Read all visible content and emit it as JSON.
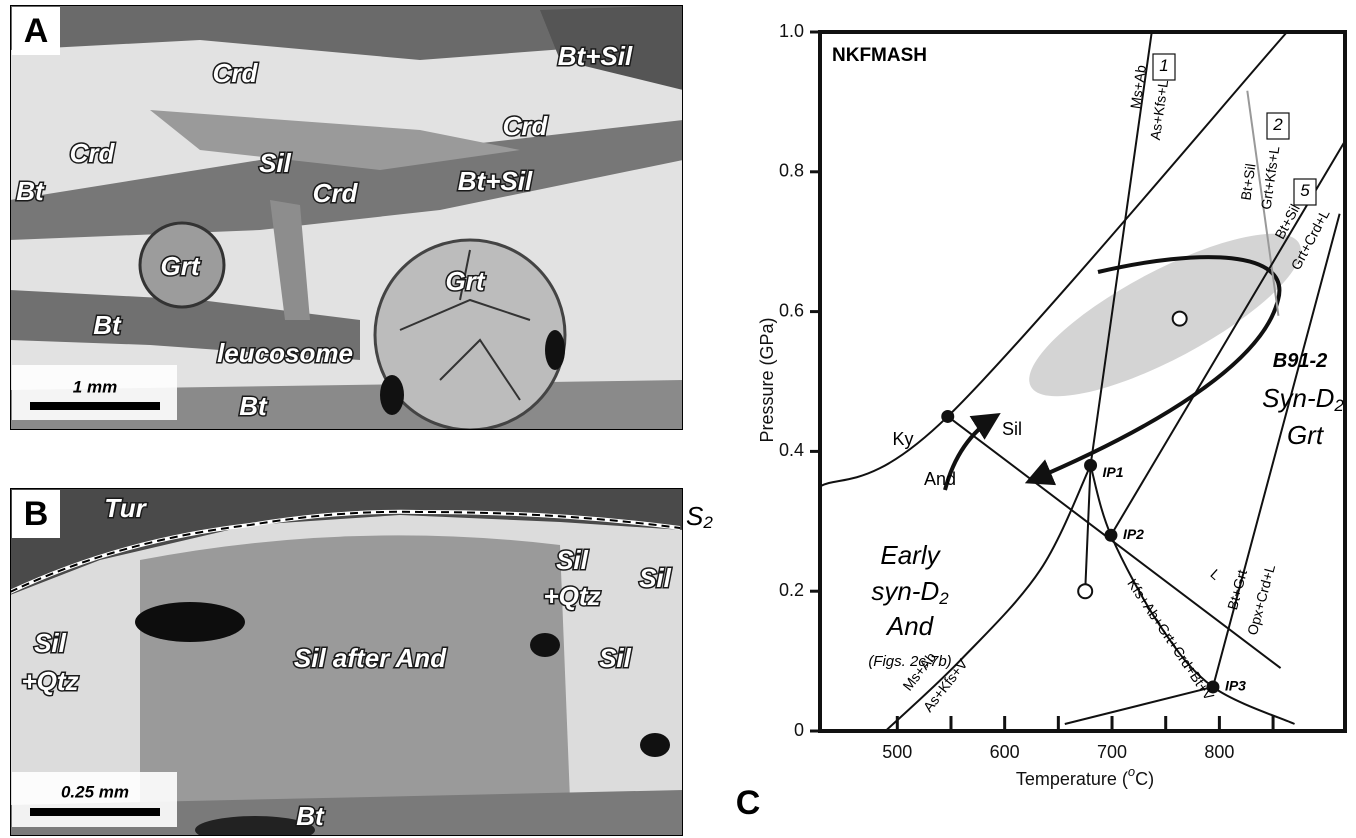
{
  "panel_a": {
    "letter": "A",
    "labels": [
      "Crd",
      "Bt+Sil",
      "Crd",
      "Crd",
      "Sil",
      "Crd",
      "Bt+Sil",
      "Bt",
      "Grt",
      "Grt",
      "Bt",
      "leucosome",
      "Bt"
    ],
    "scale": "1 mm"
  },
  "panel_b": {
    "letter": "B",
    "labels": [
      "Tur",
      "Sil",
      "+Qtz",
      "Sil",
      "Sil",
      "Sil after And",
      "Sil",
      "+Qtz",
      "Bt"
    ],
    "foliation": {
      "text": "S",
      "sub": "2"
    },
    "scale": "0.25 mm"
  },
  "chart_data": {
    "type": "phase-diagram",
    "xlabel": {
      "text": "Temperature (",
      "sup": "o",
      "tail": "C)"
    },
    "ylabel": "Pressure (GPa)",
    "xlim": [
      428,
      917
    ],
    "ylim": [
      0,
      1
    ],
    "xticks": [
      500,
      600,
      700,
      800
    ],
    "xminor": [
      550,
      650,
      750,
      850
    ],
    "yticks": [
      0,
      0.2,
      0.4,
      0.6,
      0.8,
      {
        "value": 1,
        "label": "1.0"
      }
    ],
    "series": [
      {
        "color": "#111111",
        "x": [
          428,
          547,
          863
        ],
        "values": [
          0.35,
          0.45,
          1.0
        ]
      },
      {
        "color": "#111111",
        "x": [
          547,
          857
        ],
        "values": [
          0.45,
          0.09
        ]
      },
      {
        "color": "#111111",
        "x": [
          737,
          680
        ],
        "values": [
          1.0,
          0.38
        ]
      },
      {
        "color": "#111111",
        "x": [
          680,
          699,
          745,
          794,
          870
        ],
        "values": [
          0.38,
          0.28,
          0.15,
          0.063,
          0.01
        ]
      },
      {
        "color": "#111111",
        "x": [
          489,
          558,
          633,
          680
        ],
        "values": [
          0,
          0.1,
          0.23,
          0.38
        ]
      },
      {
        "color": "#111111",
        "x": [
          680,
          675
        ],
        "values": [
          0.38,
          0.2
        ]
      },
      {
        "color": "#999999",
        "x": [
          826,
          855
        ],
        "values": [
          0.916,
          0.594
        ]
      },
      {
        "color": "#111111",
        "x": [
          699,
          917
        ],
        "values": [
          0.28,
          0.844
        ]
      },
      {
        "color": "#111111",
        "x": [
          794,
          912
        ],
        "values": [
          0.063,
          0.74
        ]
      },
      {
        "color": "#111111",
        "x": [
          656,
          794
        ],
        "values": [
          0.01,
          0.063
        ]
      }
    ],
    "points": [
      {
        "name": "IP1",
        "x": 680,
        "y": 0.38,
        "filled": true
      },
      {
        "name": "IP2",
        "x": 699,
        "y": 0.28,
        "filled": true
      },
      {
        "name": "IP3",
        "x": 794,
        "y": 0.063,
        "filled": true
      },
      {
        "x": 547,
        "y": 0.45,
        "filled": true
      },
      {
        "x": 675,
        "y": 0.2,
        "filled": false
      },
      {
        "x": 763,
        "y": 0.59,
        "filled": false
      }
    ],
    "annotations": [
      {
        "text": "NKFMASH"
      },
      {
        "text": "1"
      },
      {
        "text": "2"
      },
      {
        "text": "5"
      },
      {
        "text": "Ms+Ab"
      },
      {
        "text": "As+Kfs+L"
      },
      {
        "text": "Bt+Sil"
      },
      {
        "text": "Grt+Kfs+L"
      },
      {
        "text": "Bt+Sil"
      },
      {
        "text": "Grt+Crd+L"
      },
      {
        "text": "Bt+Grt"
      },
      {
        "text": "Opx+Crd+L"
      },
      {
        "text": "Ms+Ab"
      },
      {
        "text": "As+Kfs+V"
      },
      {
        "text": "Kfs+Ab+Grt+Crd+Bt+V"
      },
      {
        "text": "L"
      },
      {
        "text": "Ky"
      },
      {
        "text": "And"
      },
      {
        "text": "Sil"
      },
      {
        "text": "B91-2"
      },
      {
        "text": "Syn-D",
        "sub": "2"
      },
      {
        "text": "Grt"
      },
      {
        "text": "Early"
      },
      {
        "text": "syn-D",
        "sub": "2"
      },
      {
        "text": "And"
      },
      {
        "text": "(Figs. 2c,7b)"
      },
      {
        "text": "C"
      }
    ]
  }
}
